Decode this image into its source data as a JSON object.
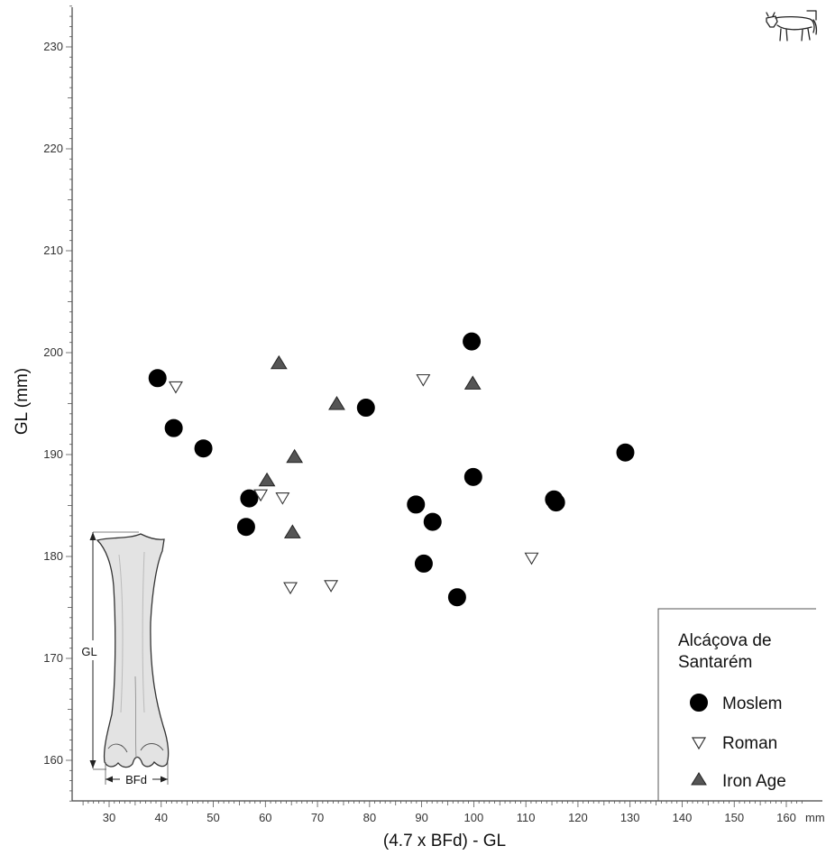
{
  "chart_data": {
    "type": "scatter",
    "xlabel": "(4.7 x BFd) - GL",
    "ylabel": "GL (mm)",
    "x_unit": "mm",
    "xlim": [
      25,
      163
    ],
    "ylim": [
      156,
      234
    ],
    "x_ticks": [
      30,
      40,
      50,
      60,
      70,
      80,
      90,
      100,
      110,
      120,
      130,
      140,
      150,
      160
    ],
    "y_ticks": [
      160,
      170,
      180,
      190,
      200,
      210,
      220,
      230
    ],
    "grid": false,
    "legend": {
      "title_lines": [
        "Alcáçova de",
        "Santarém"
      ],
      "placement": "bottom-right"
    },
    "series": [
      {
        "name": "Moslem",
        "marker": "filled-circle",
        "color": "#000000",
        "points": [
          [
            39.3,
            197.5
          ],
          [
            42.4,
            192.6
          ],
          [
            48.1,
            190.6
          ],
          [
            56.9,
            185.7
          ],
          [
            56.3,
            182.9
          ],
          [
            79.3,
            194.6
          ],
          [
            88.9,
            185.1
          ],
          [
            92.1,
            183.4
          ],
          [
            90.4,
            179.3
          ],
          [
            96.8,
            176.0
          ],
          [
            99.6,
            201.1
          ],
          [
            99.9,
            187.8
          ],
          [
            115.4,
            185.6
          ],
          [
            115.8,
            185.3
          ],
          [
            129.1,
            190.2
          ]
        ]
      },
      {
        "name": "Roman",
        "marker": "open-triangle-down",
        "color": "#ffffff",
        "points": [
          [
            42.8,
            196.6
          ],
          [
            59.1,
            186.0
          ],
          [
            63.3,
            185.7
          ],
          [
            64.8,
            176.9
          ],
          [
            72.6,
            177.1
          ],
          [
            90.3,
            197.3
          ],
          [
            111.1,
            179.8
          ]
        ]
      },
      {
        "name": "Iron Age",
        "marker": "filled-triangle-up",
        "color": "#555555",
        "points": [
          [
            62.6,
            199.0
          ],
          [
            73.7,
            195.0
          ],
          [
            65.6,
            189.8
          ],
          [
            60.3,
            187.5
          ],
          [
            65.2,
            182.4
          ],
          [
            99.8,
            197.0
          ]
        ]
      }
    ]
  },
  "inset": {
    "gl_label": "GL",
    "bfd_label": "BFd"
  },
  "corner_icon": "cattle-icon"
}
